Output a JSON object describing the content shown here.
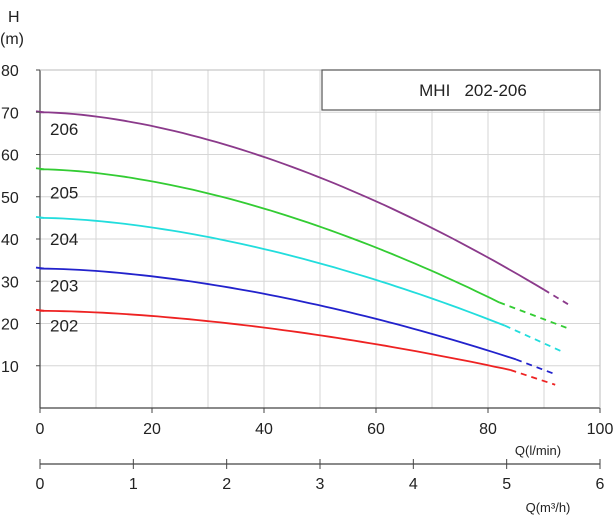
{
  "chart_data": {
    "type": "line",
    "title_box": "MHI   202-206",
    "y_axis": {
      "label_top": "H",
      "label_unit": "(m)",
      "range": [
        0,
        80
      ],
      "ticks": [
        10,
        20,
        30,
        40,
        50,
        60,
        70,
        80
      ]
    },
    "x_axis_primary": {
      "label": "Q(l/min)",
      "range": [
        0,
        100
      ],
      "ticks": [
        0,
        20,
        40,
        60,
        80,
        100
      ]
    },
    "x_axis_secondary": {
      "label": "Q(m³/h)",
      "range": [
        0,
        6
      ],
      "ticks": [
        0,
        1,
        2,
        3,
        4,
        5,
        6
      ]
    },
    "grid": true,
    "series": [
      {
        "name": "206",
        "color": "#8b3a8b",
        "q_start": 0,
        "q_end": 90,
        "q_dash_end": 95,
        "h0": 70,
        "h_end": 28,
        "h_dash_end": 24
      },
      {
        "name": "205",
        "color": "#33cc33",
        "q_start": 0,
        "q_end": 82,
        "q_dash_end": 94,
        "h0": 56.5,
        "h_end": 25,
        "h_dash_end": 19
      },
      {
        "name": "204",
        "color": "#22dddd",
        "q_start": 0,
        "q_end": 83,
        "q_dash_end": 93,
        "h0": 45,
        "h_end": 19.5,
        "h_dash_end": 13.5
      },
      {
        "name": "203",
        "color": "#2222cc",
        "q_start": 0,
        "q_end": 85,
        "q_dash_end": 92,
        "h0": 33,
        "h_end": 11.5,
        "h_dash_end": 8
      },
      {
        "name": "202",
        "color": "#ee2222",
        "q_start": 0,
        "q_end": 84,
        "q_dash_end": 92,
        "h0": 23,
        "h_end": 9,
        "h_dash_end": 5.5
      }
    ]
  }
}
